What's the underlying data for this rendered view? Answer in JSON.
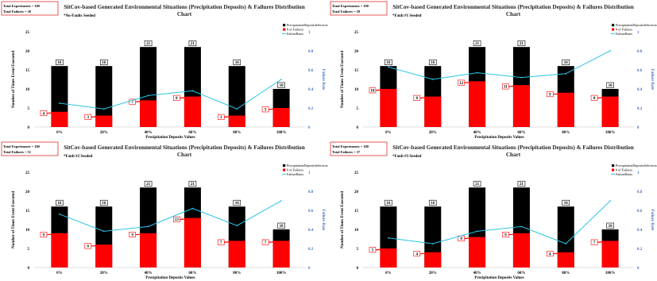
{
  "colors": {
    "black_bar": "#000000",
    "red_bar": "#ff0000",
    "rate_line": "#29c5e6",
    "secondary_axis": "#4472c4",
    "info_border": "#e03030"
  },
  "chart_data": [
    {
      "type": "bar",
      "title": "SitCov-based Generated Environmental Situations (Precipitation Deposits) & Failures Distribution Chart",
      "subtitle": "*No-Faults Seeded",
      "info": [
        "Total Experiments = 100",
        "Total Failures = 30"
      ],
      "xlabel": "Precipitation Deposits Values",
      "ylabel": "Number of Times Event Executed",
      "y2label": "Failure Rate",
      "ylim": [
        0,
        25
      ],
      "yticks": [
        0,
        5,
        10,
        15,
        20,
        25
      ],
      "y2lim": [
        0,
        1
      ],
      "y2ticks": [
        0,
        0.2,
        0.4,
        0.6,
        0.8,
        1
      ],
      "legend_position": "top-right",
      "categories": [
        "0%",
        "20%",
        "40%",
        "60%",
        "80%",
        "100%"
      ],
      "series": [
        {
          "name": "PrecipitationDepositsSelection",
          "kind": "bar",
          "values": [
            16,
            16,
            21,
            21,
            16,
            10
          ],
          "labels": [
            "16",
            "16",
            "21",
            "21",
            "16",
            "10"
          ]
        },
        {
          "name": "# of Failures",
          "kind": "bar",
          "values": [
            4,
            3,
            7,
            8,
            3,
            5
          ],
          "labels": [
            "4",
            "3",
            "7",
            "8",
            "3",
            "5"
          ]
        },
        {
          "name": "FailureRates",
          "kind": "line",
          "axis": "secondary",
          "values": [
            0.25,
            0.19,
            0.33,
            0.38,
            0.19,
            0.5
          ]
        }
      ]
    },
    {
      "type": "bar",
      "title": "SitCov-based Generated Environmental Situations (Precipitation Deposits) & Failures Distribution Chart",
      "subtitle": "*Fault #1 Seeded",
      "info": [
        "Total Experiments = 100",
        "Total Failures = 58"
      ],
      "xlabel": "Precipitation Deposits Values",
      "ylabel": "Number of Times Event Executed",
      "y2label": "Failure Rate",
      "ylim": [
        0,
        25
      ],
      "yticks": [
        0,
        5,
        10,
        15,
        20,
        25
      ],
      "y2lim": [
        0,
        1
      ],
      "y2ticks": [
        0,
        0.2,
        0.4,
        0.6,
        0.8,
        1
      ],
      "legend_position": "top-right",
      "categories": [
        "0%",
        "20%",
        "40%",
        "60%",
        "80%",
        "100%"
      ],
      "series": [
        {
          "name": "PrecipitationDepositsSelection",
          "kind": "bar",
          "values": [
            16,
            16,
            21,
            21,
            16,
            10
          ],
          "labels": [
            "16",
            "16",
            "21",
            "21",
            "16",
            "10"
          ]
        },
        {
          "name": "# of Failures",
          "kind": "bar",
          "values": [
            10,
            8,
            12,
            11,
            9,
            8
          ],
          "labels": [
            "10",
            "8",
            "12",
            "11",
            "9",
            "8"
          ]
        },
        {
          "name": "FailureRates",
          "kind": "line",
          "axis": "secondary",
          "values": [
            0.63,
            0.5,
            0.57,
            0.52,
            0.56,
            0.8
          ]
        }
      ]
    },
    {
      "type": "bar",
      "title": "SitCov-based Generated Environmental Situations (Precipitation Deposits) & Failures Distribution Chart",
      "subtitle": "*Fault #2 Seeded",
      "info": [
        "Total Experiments = 100",
        "Total Failures = 51"
      ],
      "xlabel": "Precipitation Deposits Values",
      "ylabel": "Number of Times Event Executed",
      "y2label": "Failure Rate",
      "ylim": [
        0,
        25
      ],
      "yticks": [
        0,
        5,
        10,
        15,
        20,
        25
      ],
      "y2lim": [
        0,
        1
      ],
      "y2ticks": [
        0,
        0.2,
        0.4,
        0.6,
        0.8,
        1
      ],
      "legend_position": "top-right",
      "categories": [
        "0%",
        "20%",
        "40%",
        "60%",
        "80%",
        "100%"
      ],
      "series": [
        {
          "name": "PrecipitationDepositsSelection",
          "kind": "bar",
          "values": [
            16,
            16,
            21,
            21,
            16,
            10
          ],
          "labels": [
            "16",
            "16",
            "21",
            "21",
            "16",
            "10"
          ]
        },
        {
          "name": "# of Failures",
          "kind": "bar",
          "values": [
            9,
            6,
            9,
            13,
            7,
            7
          ],
          "labels": [
            "9",
            "6",
            "9",
            "13",
            "7",
            "7"
          ]
        },
        {
          "name": "FailureRates",
          "kind": "line",
          "axis": "secondary",
          "values": [
            0.56,
            0.38,
            0.43,
            0.62,
            0.44,
            0.7
          ]
        }
      ]
    },
    {
      "type": "bar",
      "title": "SitCov-based Generated Environmental Situations (Precipitation Deposits) & Failures Distribution Chart",
      "subtitle": "*Fault #3 Seeded",
      "info": [
        "Total Experiments = 100",
        "Total Failures = 37"
      ],
      "xlabel": "Precipitation Deposits Values",
      "ylabel": "Number of Times Event Executed",
      "y2label": "Failure Rate",
      "ylim": [
        0,
        25
      ],
      "yticks": [
        0,
        5,
        10,
        15,
        20,
        25
      ],
      "y2lim": [
        0,
        1
      ],
      "y2ticks": [
        0,
        0.2,
        0.4,
        0.6,
        0.8,
        1
      ],
      "legend_position": "top-right",
      "categories": [
        "0%",
        "20%",
        "40%",
        "60%",
        "80%",
        "100%"
      ],
      "series": [
        {
          "name": "PrecipitationDepositsSelection",
          "kind": "bar",
          "values": [
            16,
            16,
            21,
            21,
            16,
            10
          ],
          "labels": [
            "16",
            "16",
            "21",
            "21",
            "16",
            "10"
          ]
        },
        {
          "name": "# of Failures",
          "kind": "bar",
          "values": [
            5,
            4,
            8,
            9,
            4,
            7
          ],
          "labels": [
            "5",
            "4",
            "8",
            "9",
            "4",
            "7"
          ]
        },
        {
          "name": "FailureRates",
          "kind": "line",
          "axis": "secondary",
          "values": [
            0.31,
            0.25,
            0.38,
            0.43,
            0.25,
            0.7
          ]
        }
      ]
    }
  ]
}
